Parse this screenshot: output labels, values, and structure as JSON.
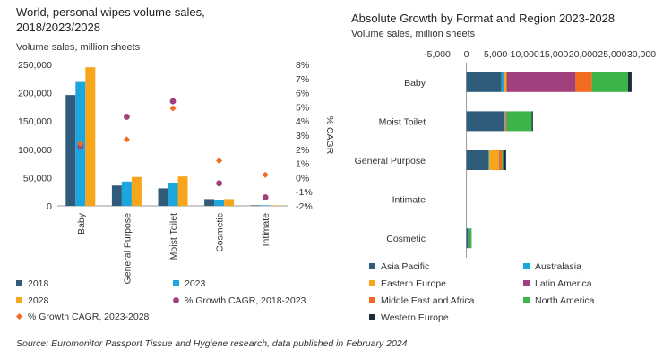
{
  "chart_data": [
    {
      "type": "bar",
      "title": "World, personal wipes volume sales, 2018/2023/2028",
      "subtitle": "Volume sales, million sheets",
      "categories": [
        "Baby",
        "General Purpose",
        "Moist Toilet",
        "Cosmetic",
        "Intimate"
      ],
      "series": [
        {
          "name": "2018",
          "color": "#2e5c7a",
          "values": [
            196000,
            36000,
            31000,
            12000,
            1000
          ]
        },
        {
          "name": "2023",
          "color": "#1ba6de",
          "values": [
            219000,
            43000,
            40000,
            11000,
            1000
          ]
        },
        {
          "name": "2028",
          "color": "#f7a61c",
          "values": [
            245000,
            51000,
            52000,
            12000,
            1000
          ]
        }
      ],
      "secondary_series": [
        {
          "name": "% Growth CAGR, 2018-2023",
          "marker": "circle",
          "color": "#a0407c",
          "values": [
            2.2,
            4.3,
            5.4,
            -0.4,
            -1.4
          ]
        },
        {
          "name": "% Growth CAGR, 2023-2028",
          "marker": "diamond",
          "color": "#f26b21",
          "values": [
            2.4,
            2.7,
            4.9,
            1.2,
            0.2
          ]
        }
      ],
      "ylim": [
        0,
        250000
      ],
      "yticks": [
        "0",
        "50,000",
        "100,000",
        "150,000",
        "200,000",
        "250,000"
      ],
      "y2label": "% CAGR",
      "y2lim": [
        -2,
        8
      ],
      "y2ticks": [
        "-2%",
        "-1%",
        "0%",
        "1%",
        "2%",
        "3%",
        "4%",
        "5%",
        "6%",
        "7%",
        "8%"
      ],
      "legend_placement": "bottom"
    },
    {
      "type": "bar",
      "orientation": "horizontal",
      "stacked": true,
      "title": "Absolute Growth by Format and Region 2023-2028",
      "subtitle": "Volume sales, million sheets",
      "categories": [
        "Baby",
        "Moist Toilet",
        "General Purpose",
        "Intimate",
        "Cosmetic"
      ],
      "series": [
        {
          "name": "Asia Pacific",
          "color": "#2e5c7a",
          "values": [
            6000,
            6500,
            3800,
            0,
            300
          ]
        },
        {
          "name": "Australasia",
          "color": "#1ba6de",
          "values": [
            500,
            100,
            100,
            0,
            50
          ]
        },
        {
          "name": "Eastern Europe",
          "color": "#f7a61c",
          "values": [
            400,
            100,
            1700,
            0,
            50
          ]
        },
        {
          "name": "Latin America",
          "color": "#a0407c",
          "values": [
            11800,
            100,
            100,
            0,
            50
          ]
        },
        {
          "name": "Middle East and Africa",
          "color": "#f26b21",
          "values": [
            2800,
            100,
            400,
            0,
            50
          ]
        },
        {
          "name": "North America",
          "color": "#3bb54a",
          "values": [
            6200,
            4300,
            200,
            0,
            400
          ]
        },
        {
          "name": "Western Europe",
          "color": "#1a2b3c",
          "values": [
            600,
            200,
            500,
            0,
            0
          ]
        }
      ],
      "xlim": [
        -5000,
        30000
      ],
      "xticks": [
        "-5,000",
        "0",
        "5,000",
        "10,000",
        "15,000",
        "20,000",
        "25,000",
        "30,000"
      ],
      "legend_placement": "bottom"
    }
  ],
  "source": "Source: Euromonitor Passport Tissue and Hygiene research, data published in February 2024"
}
